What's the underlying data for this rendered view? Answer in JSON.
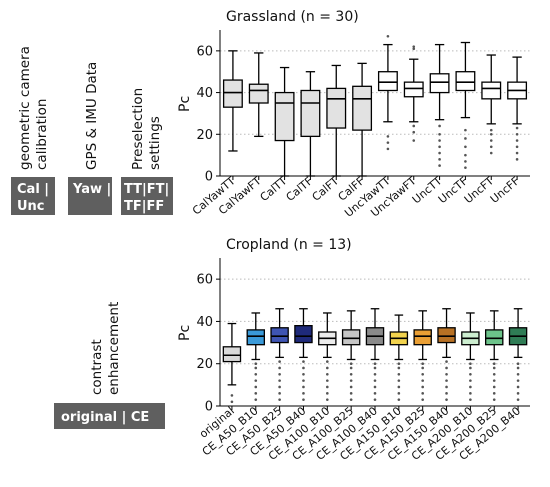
{
  "panel_labels": {
    "calibration": [
      "geometric camera",
      "calibration"
    ],
    "gps": [
      "GPS & IMU Data"
    ],
    "preselection": [
      "Preselection",
      "settings"
    ],
    "contrast": [
      "contrast",
      "enhancement"
    ]
  },
  "legend_boxes": {
    "calibration": [
      "Cal |",
      "Unc"
    ],
    "gps": [
      "Yaw |"
    ],
    "preselection": [
      "TT|FT|",
      "TF|FF"
    ],
    "contrast": [
      "original | CE"
    ]
  },
  "colors": {
    "grey": "#e2e2e2",
    "white": "#ffffff",
    "cropland": [
      "#d9d9d9",
      "#3a9ad9",
      "#3f55b4",
      "#1f2a7a",
      "#ececec",
      "#c6c6c6",
      "#8a8a8a",
      "#f2d34e",
      "#ea9f34",
      "#b87124",
      "#cdeed0",
      "#6cc38a",
      "#2f7c55"
    ],
    "grid": "#bbbbbb"
  },
  "chart_data": [
    {
      "type": "box",
      "title": "Grassland (n = 30)",
      "ylabel": "Pc",
      "xlabel": "",
      "ylim": [
        0,
        70
      ],
      "yticks": [
        0,
        20,
        40,
        60
      ],
      "grid": "horizontal dotted",
      "categories": [
        "CalYawTT",
        "CalYawFT",
        "CalTT",
        "CalTF",
        "CalFT",
        "CalFF",
        "UncYawTT",
        "UncYawFT",
        "UncTT",
        "UncTF",
        "UncFT",
        "UncFF"
      ],
      "box_fill": [
        "grey",
        "grey",
        "grey",
        "grey",
        "grey",
        "grey",
        "white",
        "white",
        "white",
        "white",
        "white",
        "white"
      ],
      "boxes": [
        {
          "whislo": 12,
          "q1": 33,
          "med": 40,
          "q3": 46,
          "whishi": 60,
          "fliers": []
        },
        {
          "whislo": 19,
          "q1": 35,
          "med": 41,
          "q3": 44,
          "whishi": 59,
          "fliers": []
        },
        {
          "whislo": 0,
          "q1": 17,
          "med": 35,
          "q3": 40,
          "whishi": 52,
          "fliers": []
        },
        {
          "whislo": 0,
          "q1": 19,
          "med": 35,
          "q3": 41,
          "whishi": 50,
          "fliers": []
        },
        {
          "whislo": 0,
          "q1": 23,
          "med": 37,
          "q3": 42,
          "whishi": 53,
          "fliers": []
        },
        {
          "whislo": 0,
          "q1": 22,
          "med": 37,
          "q3": 43,
          "whishi": 54,
          "fliers": []
        },
        {
          "whislo": 26,
          "q1": 41,
          "med": 45,
          "q3": 50,
          "whishi": 63,
          "fliers": [
            13,
            16,
            19,
            67
          ]
        },
        {
          "whislo": 26,
          "q1": 38,
          "med": 42,
          "q3": 45,
          "whishi": 56,
          "fliers": [
            17,
            21,
            24,
            61,
            62
          ]
        },
        {
          "whislo": 27,
          "q1": 40,
          "med": 45,
          "q3": 49,
          "whishi": 63,
          "fliers": [
            5,
            8,
            11,
            14,
            17,
            20,
            24
          ]
        },
        {
          "whislo": 28,
          "q1": 41,
          "med": 45,
          "q3": 50,
          "whishi": 64,
          "fliers": [
            4,
            7,
            10,
            14,
            18,
            22
          ]
        },
        {
          "whislo": 25,
          "q1": 37,
          "med": 42,
          "q3": 45,
          "whishi": 58,
          "fliers": [
            11,
            14,
            17,
            20,
            22
          ]
        },
        {
          "whislo": 25,
          "q1": 37,
          "med": 41,
          "q3": 45,
          "whishi": 57,
          "fliers": [
            8,
            11,
            14,
            17,
            20,
            23
          ]
        }
      ]
    },
    {
      "type": "box",
      "title": "Cropland (n = 13)",
      "ylabel": "Pc",
      "xlabel": "",
      "ylim": [
        0,
        70
      ],
      "yticks": [
        0,
        20,
        40,
        60
      ],
      "grid": "horizontal dotted",
      "categories": [
        "original",
        "CE_A50_B10",
        "CE_A50_B25",
        "CE_A50_B40",
        "CE_A100_B10",
        "CE_A100_B25",
        "CE_A100_B40",
        "CE_A150_B10",
        "CE_A150_B25",
        "CE_A150_B40",
        "CE_A200_B10",
        "CE_A200_B25",
        "CE_A200_B40"
      ],
      "boxes": [
        {
          "whislo": 10,
          "q1": 21,
          "med": 24,
          "q3": 28,
          "whishi": 39,
          "fliers": [
            2,
            5
          ]
        },
        {
          "whislo": 22,
          "q1": 29,
          "med": 33,
          "q3": 36,
          "whishi": 44,
          "fliers": [
            3,
            6,
            9,
            12,
            15,
            18,
            20
          ]
        },
        {
          "whislo": 23,
          "q1": 30,
          "med": 33,
          "q3": 37,
          "whishi": 46,
          "fliers": [
            3,
            6,
            9,
            12,
            15,
            18,
            21
          ]
        },
        {
          "whislo": 23,
          "q1": 30,
          "med": 33,
          "q3": 38,
          "whishi": 46,
          "fliers": [
            3,
            6,
            9,
            12,
            15,
            18,
            21
          ]
        },
        {
          "whislo": 23,
          "q1": 29,
          "med": 32,
          "q3": 35,
          "whishi": 44,
          "fliers": [
            3,
            6,
            9,
            12,
            15,
            18,
            21
          ]
        },
        {
          "whislo": 22,
          "q1": 29,
          "med": 32,
          "q3": 36,
          "whishi": 45,
          "fliers": [
            3,
            6,
            9,
            12,
            15,
            18,
            20
          ]
        },
        {
          "whislo": 22,
          "q1": 29,
          "med": 33,
          "q3": 37,
          "whishi": 46,
          "fliers": [
            3,
            6,
            9,
            12,
            15,
            18,
            20
          ]
        },
        {
          "whislo": 22,
          "q1": 29,
          "med": 32,
          "q3": 35,
          "whishi": 43,
          "fliers": [
            3,
            6,
            9,
            12,
            15,
            18,
            20
          ]
        },
        {
          "whislo": 22,
          "q1": 29,
          "med": 33,
          "q3": 36,
          "whishi": 45,
          "fliers": [
            3,
            6,
            9,
            12,
            15,
            18,
            20
          ]
        },
        {
          "whislo": 23,
          "q1": 30,
          "med": 33,
          "q3": 37,
          "whishi": 46,
          "fliers": [
            3,
            6,
            9,
            12,
            15,
            18,
            21
          ]
        },
        {
          "whislo": 22,
          "q1": 29,
          "med": 32,
          "q3": 35,
          "whishi": 44,
          "fliers": [
            3,
            6,
            9,
            12,
            15,
            18,
            20
          ]
        },
        {
          "whislo": 22,
          "q1": 29,
          "med": 32,
          "q3": 36,
          "whishi": 45,
          "fliers": [
            3,
            6,
            9,
            12,
            15,
            18,
            20
          ]
        },
        {
          "whislo": 23,
          "q1": 29,
          "med": 33,
          "q3": 37,
          "whishi": 46,
          "fliers": [
            3,
            6,
            9,
            12,
            15,
            18,
            20
          ]
        }
      ]
    }
  ]
}
